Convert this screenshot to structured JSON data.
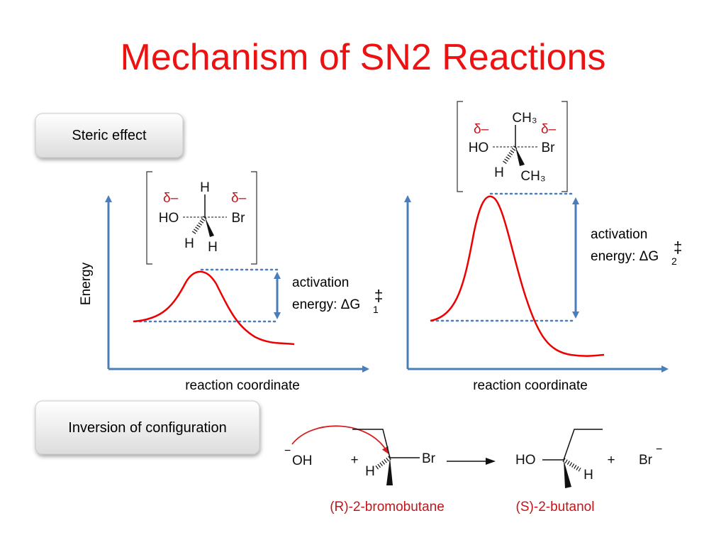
{
  "title": "Mechanism of SN2 Reactions",
  "buttons": [
    "Steric effect",
    "Inversion of configuration"
  ],
  "diagrams": [
    {
      "y_axis_label": "Energy",
      "x_axis_label": "reaction coordinate",
      "annotation": {
        "line1": "activation",
        "line2": "energy: ΔG",
        "subscript": "1",
        "superscript": "‡"
      },
      "transition_state": {
        "charge_left": "δ–",
        "charge_right": "δ–",
        "top": "H",
        "left": "HO",
        "right": "Br",
        "bottom_left": "H",
        "bottom_right": "H"
      }
    },
    {
      "x_axis_label": "reaction coordinate",
      "annotation": {
        "line1": "activation",
        "line2": "energy: ΔG",
        "subscript": "2",
        "superscript": "‡"
      },
      "transition_state": {
        "charge_left": "δ–",
        "charge_right": "δ–",
        "top": "CH₃",
        "left": "HO",
        "right": "Br",
        "bottom_left": "H",
        "bottom_right": "CH₃"
      }
    }
  ],
  "reaction": {
    "nucleophile_charge": "−",
    "nucleophile": "OH",
    "plus_1": "+",
    "reactant_h": "H",
    "reactant_br": "Br",
    "product_ho": "HO",
    "product_h": "H",
    "plus_2": "+",
    "leaving_group": "Br",
    "leaving_group_charge": "−",
    "reactant_name": "(R)-2-bromobutane",
    "product_name": "(S)-2-butanol"
  }
}
